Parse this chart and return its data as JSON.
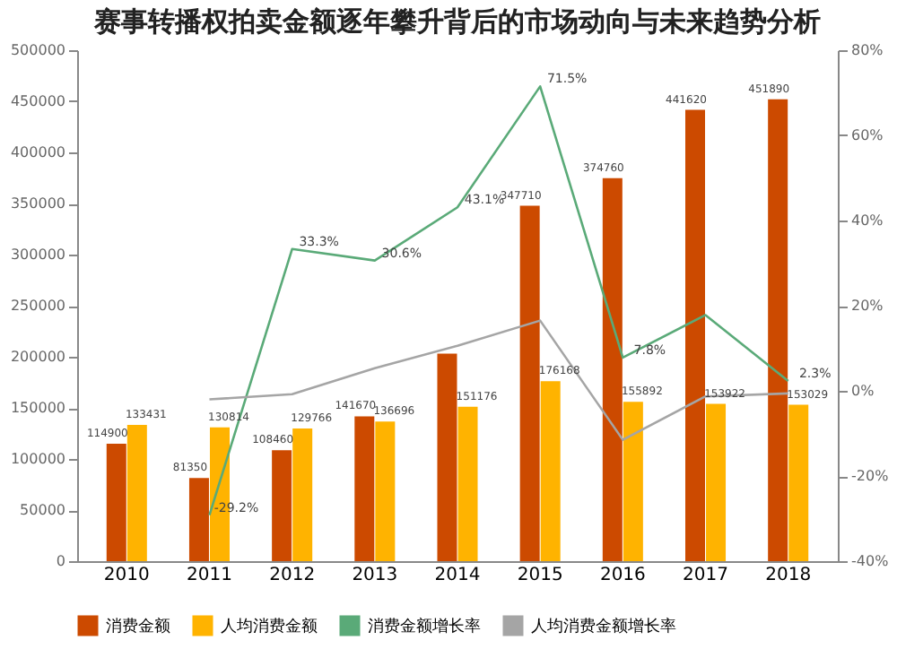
{
  "chart_data": {
    "type": "bar",
    "title": "赛事转播权拍卖金额逐年攀升背后的市场动向与未来趋势分析",
    "categories": [
      "2010",
      "2011",
      "2012",
      "2013",
      "2014",
      "2015",
      "2016",
      "2017",
      "2018"
    ],
    "series": [
      {
        "name": "消费金额",
        "type": "bar",
        "color": "#cc4a00",
        "values": [
          114900,
          81350,
          108460,
          141670,
          203000,
          347710,
          374760,
          441620,
          451890
        ],
        "value_labels": [
          "114900",
          "81350",
          "108460",
          "141670",
          null,
          "347710",
          "374760",
          "441620",
          "451890"
        ]
      },
      {
        "name": "人均消费金额",
        "type": "bar",
        "color": "#ffb300",
        "values": [
          133431,
          130814,
          129766,
          136696,
          151176,
          176168,
          155892,
          153922,
          153029
        ],
        "value_labels": [
          "133431",
          "130814",
          "129766",
          "136696",
          "151176",
          "176168",
          "155892",
          "153922",
          "153029"
        ]
      },
      {
        "name": "消费金额增长率",
        "type": "line",
        "axis": "y2",
        "color": "#5aaa78",
        "values": [
          null,
          -29.2,
          33.3,
          30.6,
          43.1,
          71.5,
          7.8,
          17.8,
          2.3
        ],
        "value_labels": [
          null,
          "-29.2%",
          "33.3%",
          "30.6%",
          "43.1%",
          "71.5%",
          "7.8%",
          null,
          "2.3%"
        ]
      },
      {
        "name": "人均消费金额增长率",
        "type": "line",
        "axis": "y2",
        "color": "#a5a5a5",
        "values": [
          null,
          -2.0,
          -0.8,
          5.3,
          10.6,
          16.5,
          -11.5,
          -1.3,
          -0.6
        ]
      }
    ],
    "ylim": [
      0,
      500000
    ],
    "yticks": [
      0,
      50000,
      100000,
      150000,
      200000,
      250000,
      300000,
      350000,
      400000,
      450000,
      500000
    ],
    "y2lim": [
      -40,
      80
    ],
    "y2ticks": [
      {
        "value": -40,
        "label": "-40%"
      },
      {
        "value": -20,
        "label": "-20%"
      },
      {
        "value": 0,
        "label": "0%"
      },
      {
        "value": 20,
        "label": "20%"
      },
      {
        "value": 40,
        "label": "40%"
      },
      {
        "value": 60,
        "label": "60%"
      },
      {
        "value": 80,
        "label": "80%"
      }
    ],
    "legend": "bottom",
    "grid": false
  }
}
